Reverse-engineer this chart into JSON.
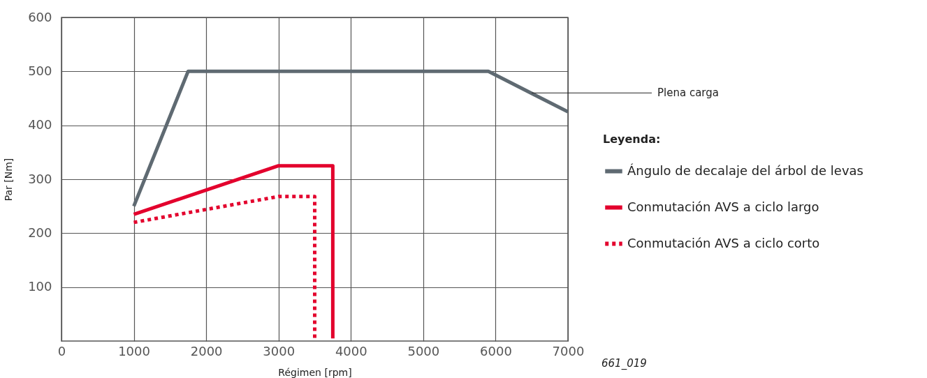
{
  "chart_data": {
    "type": "line",
    "xlabel": "Régimen [rpm]",
    "ylabel": "Par [Nm]",
    "legend_title": "Leyenda:",
    "xlim": [
      0,
      7000
    ],
    "ylim": [
      0,
      600
    ],
    "xticks": [
      0,
      1000,
      2000,
      3000,
      4000,
      5000,
      6000,
      7000
    ],
    "yticks": [
      100,
      200,
      300,
      400,
      500,
      600
    ],
    "grid": true,
    "legend": "right",
    "marker": "none",
    "series": [
      {
        "name": "Ángulo de decalaje del árbol de levas",
        "color": "#5f6a72",
        "line_style": "solid",
        "x": [
          1000,
          1750,
          5900,
          7000
        ],
        "values": [
          250,
          500,
          500,
          425
        ]
      },
      {
        "name": "Conmutación AVS a ciclo largo",
        "color": "#e3002d",
        "line_style": "solid",
        "x": [
          1000,
          3000,
          3750,
          3750
        ],
        "values": [
          235,
          325,
          325,
          5
        ]
      },
      {
        "name": "Conmutación AVS a ciclo corto",
        "color": "#e3002d",
        "line_style": "dotted",
        "x": [
          1000,
          3000,
          3500,
          3500
        ],
        "values": [
          220,
          268,
          268,
          5
        ]
      }
    ],
    "annotations": [
      {
        "text": "Plena carga",
        "x": 6500,
        "y": 460
      },
      "661_019"
    ]
  }
}
